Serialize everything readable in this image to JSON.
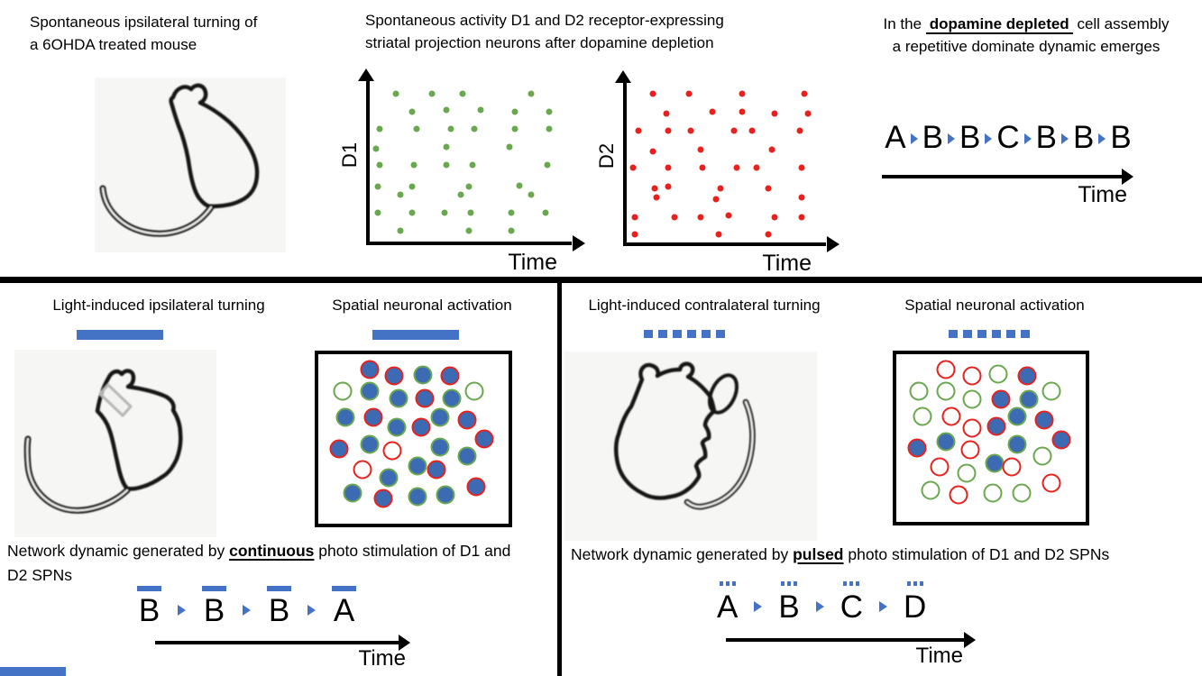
{
  "colors": {
    "accent_blue": "#4472C4",
    "neuron_fill": "#3D6BB3",
    "green": "#6AA84F",
    "red": "#E8211D",
    "line_black": "#000000"
  },
  "top_left": {
    "title_lines": [
      "Spontaneous ipsilateral turning of",
      "a 6OHDA treated mouse"
    ]
  },
  "top_middle": {
    "title_lines": [
      "Spontaneous activity D1 and D2 receptor-expressing",
      "striatal projection neurons after dopamine depletion"
    ]
  },
  "top_right": {
    "title_pre": "In the",
    "title_em": "dopamine depleted",
    "title_post": "cell assembly",
    "title_line2": "a repetitive dominate dynamic emerges",
    "sequence": [
      "A",
      "B",
      "B",
      "C",
      "B",
      "B",
      "B"
    ],
    "time_label": "Time"
  },
  "chart_data": [
    {
      "type": "scatter",
      "title": "Spontaneous activity of D1 receptor-expressing striatal projection neurons (schematic raster)",
      "xlabel": "Time",
      "ylabel": "D1",
      "dot_color": "#6AA84F",
      "axis_ticks": "none (schematic)",
      "points_pct": [
        [
          13,
          8
        ],
        [
          31,
          8
        ],
        [
          46,
          8
        ],
        [
          80,
          8
        ],
        [
          21,
          19
        ],
        [
          38,
          18
        ],
        [
          55,
          18
        ],
        [
          72,
          19
        ],
        [
          89,
          19
        ],
        [
          5,
          30
        ],
        [
          23,
          30
        ],
        [
          40,
          30
        ],
        [
          52,
          30
        ],
        [
          72,
          30
        ],
        [
          89,
          30
        ],
        [
          3,
          42
        ],
        [
          38,
          41
        ],
        [
          69,
          41
        ],
        [
          5,
          52
        ],
        [
          22,
          52
        ],
        [
          38,
          52
        ],
        [
          51,
          52
        ],
        [
          88,
          52
        ],
        [
          4,
          66
        ],
        [
          21,
          66
        ],
        [
          49,
          66
        ],
        [
          74,
          65
        ],
        [
          15,
          71
        ],
        [
          45,
          71
        ],
        [
          80,
          71
        ],
        [
          4,
          82
        ],
        [
          21,
          82
        ],
        [
          37,
          82
        ],
        [
          50,
          82
        ],
        [
          70,
          82
        ],
        [
          87,
          82
        ],
        [
          15,
          93
        ],
        [
          49,
          93
        ],
        [
          70,
          93
        ]
      ]
    },
    {
      "type": "scatter",
      "title": "Spontaneous activity of D2 receptor-expressing striatal projection neurons (schematic raster)",
      "xlabel": "Time",
      "ylabel": "D2",
      "dot_color": "#E8211D",
      "axis_ticks": "none (schematic)",
      "points_pct": [
        [
          13,
          7
        ],
        [
          31,
          7
        ],
        [
          58,
          7
        ],
        [
          89,
          7
        ],
        [
          20,
          19
        ],
        [
          43,
          18
        ],
        [
          58,
          18
        ],
        [
          74,
          19
        ],
        [
          91,
          19
        ],
        [
          6,
          30
        ],
        [
          21,
          30
        ],
        [
          32,
          30
        ],
        [
          54,
          30
        ],
        [
          63,
          30
        ],
        [
          87,
          30
        ],
        [
          13,
          43
        ],
        [
          37,
          42
        ],
        [
          73,
          42
        ],
        [
          3,
          53
        ],
        [
          21,
          53
        ],
        [
          38,
          53
        ],
        [
          55,
          53
        ],
        [
          65,
          53
        ],
        [
          88,
          53
        ],
        [
          14,
          66
        ],
        [
          21,
          65
        ],
        [
          47,
          66
        ],
        [
          71,
          66
        ],
        [
          15,
          72
        ],
        [
          45,
          73
        ],
        [
          88,
          72
        ],
        [
          4,
          84
        ],
        [
          24,
          84
        ],
        [
          37,
          84
        ],
        [
          51,
          83
        ],
        [
          74,
          84
        ],
        [
          88,
          84
        ],
        [
          4,
          95
        ],
        [
          46,
          95
        ],
        [
          71,
          95
        ]
      ]
    }
  ],
  "bottom_left": {
    "turning_title": "Light-induced ipsilateral turning",
    "activation_title": "Spatial neuronal activation",
    "caption_pre": "Network dynamic generated by ",
    "caption_em": "continuous",
    "caption_post": " photo stimulation of D1 and D2 SPNs",
    "sequence": [
      "B",
      "B",
      "B",
      "A"
    ],
    "marker": "bar",
    "time_label": "Time",
    "neurons": [
      [
        27,
        9,
        "r",
        1
      ],
      [
        40,
        13,
        "r",
        1
      ],
      [
        55,
        12,
        "g",
        1
      ],
      [
        69,
        13,
        "r",
        1
      ],
      [
        13,
        22,
        "g",
        0
      ],
      [
        27,
        22,
        "g",
        1
      ],
      [
        82,
        22,
        "g",
        0
      ],
      [
        42,
        26,
        "g",
        1
      ],
      [
        56,
        26,
        "r",
        1
      ],
      [
        70,
        26,
        "g",
        1
      ],
      [
        14,
        37,
        "g",
        1
      ],
      [
        29,
        37,
        "r",
        1
      ],
      [
        64,
        37,
        "g",
        1
      ],
      [
        78,
        39,
        "r",
        1
      ],
      [
        41,
        43,
        "g",
        1
      ],
      [
        54,
        43,
        "r",
        1
      ],
      [
        11,
        56,
        "r",
        1
      ],
      [
        27,
        53,
        "g",
        1
      ],
      [
        39,
        57,
        "r",
        0
      ],
      [
        64,
        55,
        "g",
        1
      ],
      [
        78,
        60,
        "g",
        1
      ],
      [
        87,
        50,
        "r",
        1
      ],
      [
        23,
        68,
        "r",
        0
      ],
      [
        52,
        66,
        "g",
        1
      ],
      [
        62,
        68,
        "r",
        1
      ],
      [
        37,
        73,
        "g",
        1
      ],
      [
        83,
        78,
        "r",
        1
      ],
      [
        18,
        82,
        "g",
        1
      ],
      [
        34,
        85,
        "r",
        1
      ],
      [
        52,
        84,
        "g",
        1
      ],
      [
        67,
        83,
        "g",
        1
      ]
    ]
  },
  "bottom_right": {
    "turning_title": "Light-induced contralateral turning",
    "activation_title": "Spatial neuronal activation",
    "caption_pre": "Network dynamic generated by ",
    "caption_em": "pulsed",
    "caption_post": " photo stimulation of D1 and D2 SPNs",
    "sequence": [
      "A",
      "B",
      "C",
      "D"
    ],
    "marker": "dots",
    "time_label": "Time",
    "neurons": [
      [
        26,
        9,
        "r",
        0
      ],
      [
        40,
        13,
        "r",
        0
      ],
      [
        54,
        12,
        "g",
        0
      ],
      [
        69,
        13,
        "r",
        1
      ],
      [
        12,
        22,
        "g",
        0
      ],
      [
        26,
        22,
        "g",
        0
      ],
      [
        82,
        22,
        "g",
        0
      ],
      [
        40,
        27,
        "g",
        0
      ],
      [
        55,
        27,
        "r",
        1
      ],
      [
        70,
        27,
        "g",
        1
      ],
      [
        14,
        37,
        "g",
        0
      ],
      [
        29,
        37,
        "r",
        0
      ],
      [
        64,
        37,
        "g",
        1
      ],
      [
        78,
        39,
        "r",
        1
      ],
      [
        40,
        44,
        "r",
        0
      ],
      [
        53,
        43,
        "r",
        1
      ],
      [
        11,
        56,
        "r",
        1
      ],
      [
        26,
        52,
        "g",
        1
      ],
      [
        39,
        57,
        "r",
        0
      ],
      [
        64,
        54,
        "g",
        1
      ],
      [
        77,
        61,
        "g",
        0
      ],
      [
        87,
        51,
        "r",
        1
      ],
      [
        23,
        67,
        "r",
        0
      ],
      [
        52,
        65,
        "g",
        1
      ],
      [
        61,
        67,
        "r",
        0
      ],
      [
        37,
        71,
        "g",
        0
      ],
      [
        82,
        77,
        "r",
        0
      ],
      [
        18,
        81,
        "g",
        0
      ],
      [
        33,
        84,
        "r",
        0
      ],
      [
        51,
        83,
        "g",
        0
      ],
      [
        66,
        83,
        "g",
        0
      ]
    ]
  }
}
